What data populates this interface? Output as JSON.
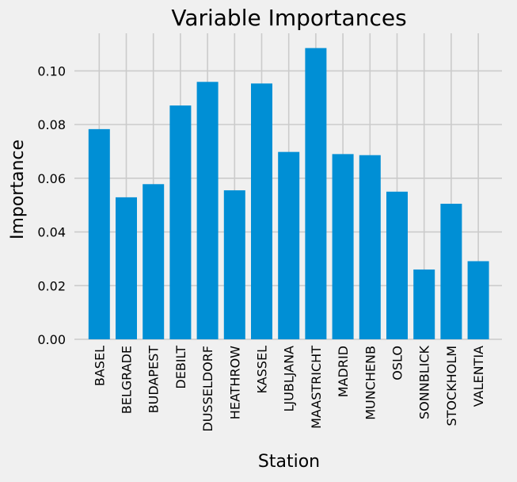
{
  "chart_data": {
    "type": "bar",
    "title": "Variable Importances",
    "xlabel": "Station",
    "ylabel": "Importance",
    "categories": [
      "BASEL",
      "BELGRADE",
      "BUDAPEST",
      "DEBILT",
      "DUSSELDORF",
      "HEATHROW",
      "KASSEL",
      "LJUBLJANA",
      "MAASTRICHT",
      "MADRID",
      "MUNCHENB",
      "OSLO",
      "SONNBLICK",
      "STOCKHOLM",
      "VALENTIA"
    ],
    "values": [
      0.0783,
      0.0529,
      0.0578,
      0.0871,
      0.0959,
      0.0555,
      0.0953,
      0.0698,
      0.1085,
      0.069,
      0.0686,
      0.055,
      0.026,
      0.0505,
      0.0291
    ],
    "yticks": [
      0.0,
      0.02,
      0.04,
      0.06,
      0.08,
      0.1
    ],
    "ytick_labels": [
      "0.00",
      "0.02",
      "0.04",
      "0.06",
      "0.08",
      "0.10"
    ],
    "ylim": [
      0,
      0.114
    ],
    "grid": true,
    "colors": {
      "bar": "#008fd5",
      "background": "#f0f0f0",
      "grid": "#cbcbcb"
    }
  }
}
